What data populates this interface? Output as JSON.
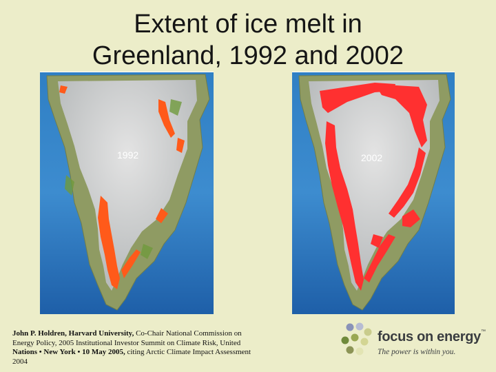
{
  "slide": {
    "title_line1": "Extent of ice melt in",
    "title_line2": "Greenland, 1992 and 2002"
  },
  "maps": [
    {
      "year_label": "1992",
      "melt_color": "#ff5a1a"
    },
    {
      "year_label": "2002",
      "melt_color": "#ff3030"
    }
  ],
  "citation": {
    "bold_part": "John P.  Holdren, Harvard University,",
    "rest_line1": " Co-Chair  National Commission on",
    "line2": "Energy Policy, 2005 Institutional Investor Summit on Climate Risk, United",
    "line3_bold": "Nations  •  New York  •  10 May 2005,",
    "line3_rest": " citing Arctic Climate Impact Assessment",
    "line4": "2004"
  },
  "logo": {
    "name": "focus on energy",
    "trademark": "™",
    "tagline": "The power is within you.",
    "dot_colors": [
      "#8a93b8",
      "#b7bcd3",
      "#c9cc8c",
      "#6f8a3a",
      "#9aa853",
      "#d3d593",
      "#8c9455",
      "#e2e4b3"
    ]
  }
}
